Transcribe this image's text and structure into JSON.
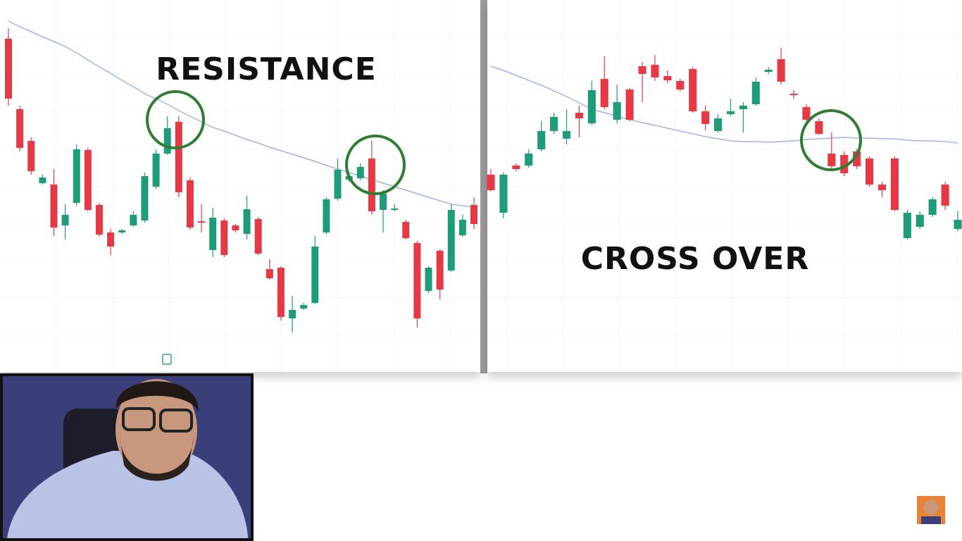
{
  "chart_data": [
    {
      "type": "candlestick",
      "title": "RESISTANCE",
      "up_color": "#1e9b78",
      "down_color": "#e63946",
      "ylim": [
        0,
        530
      ],
      "open": [
        475,
        375,
        330,
        270,
        268,
        210,
        242,
        317,
        239,
        200,
        200,
        210,
        217,
        265,
        312,
        357,
        274,
        216,
        175,
        217,
        210,
        198,
        219,
        148,
        150,
        78,
        92,
        100,
        200,
        248,
        275,
        277,
        305,
        232,
        232,
        215,
        185,
        117,
        174,
        146,
        196,
        239
      ],
      "high": [
        490,
        380,
        335,
        282,
        290,
        240,
        325,
        320,
        242,
        205,
        205,
        230,
        285,
        318,
        365,
        365,
        278,
        240,
        235,
        220,
        212,
        252,
        222,
        162,
        152,
        110,
        100,
        195,
        250,
        305,
        285,
        298,
        330,
        260,
        240,
        218,
        188,
        152,
        176,
        240,
        225,
        250
      ],
      "low": [
        380,
        315,
        282,
        268,
        195,
        190,
        238,
        230,
        194,
        168,
        198,
        208,
        214,
        262,
        310,
        250,
        204,
        200,
        165,
        165,
        200,
        190,
        168,
        133,
        75,
        58,
        90,
        98,
        198,
        245,
        272,
        274,
        225,
        200,
        230,
        190,
        65,
        114,
        105,
        144,
        194,
        205
      ],
      "close": [
        390,
        320,
        287,
        278,
        207,
        225,
        318,
        232,
        197,
        180,
        203,
        225,
        280,
        312,
        348,
        257,
        207,
        214,
        221,
        168,
        203,
        233,
        170,
        135,
        80,
        90,
        97,
        180,
        247,
        289,
        280,
        293,
        230,
        255,
        234,
        192,
        78,
        150,
        119,
        232,
        218,
        212
      ],
      "moving_average": {
        "color": "#9fb3e8",
        "values": [
          500,
          492,
          485,
          478,
          471,
          464,
          455,
          445,
          435,
          426,
          416,
          407,
          397,
          390,
          382,
          373,
          365,
          357,
          349,
          344,
          338,
          332,
          327,
          321,
          316,
          311,
          306,
          301,
          295,
          290,
          285,
          280,
          275,
          270,
          265,
          260,
          255,
          250,
          245,
          240,
          238,
          236
        ]
      }
    },
    {
      "type": "candlestick",
      "title": "CROSS OVER",
      "up_color": "#1e9b78",
      "down_color": "#e63946",
      "ylim": [
        0,
        530
      ],
      "open": [
        282,
        228,
        295,
        295,
        318,
        344,
        333,
        370,
        355,
        418,
        360,
        403,
        436,
        438,
        422,
        415,
        432,
        372,
        344,
        368,
        375,
        382,
        428,
        446,
        397,
        378,
        358,
        312,
        310,
        315,
        305,
        268,
        305,
        192,
        208,
        225,
        268,
        205
      ],
      "high": [
        290,
        285,
        298,
        318,
        358,
        370,
        375,
        380,
        415,
        450,
        410,
        405,
        442,
        452,
        430,
        418,
        435,
        380,
        368,
        390,
        385,
        420,
        435,
        462,
        402,
        382,
        362,
        342,
        315,
        318,
        308,
        272,
        308,
        232,
        230,
        250,
        272,
        230
      ],
      "low": [
        258,
        220,
        287,
        292,
        315,
        340,
        325,
        335,
        352,
        375,
        355,
        358,
        385,
        415,
        412,
        400,
        370,
        345,
        342,
        365,
        342,
        380,
        425,
        410,
        390,
        358,
        338,
        290,
        280,
        290,
        265,
        250,
        230,
        190,
        205,
        222,
        232,
        202
      ],
      "close": [
        260,
        282,
        290,
        312,
        344,
        364,
        344,
        362,
        402,
        378,
        385,
        360,
        425,
        420,
        416,
        403,
        372,
        354,
        362,
        372,
        380,
        414,
        431,
        414,
        395,
        360,
        340,
        294,
        284,
        294,
        268,
        260,
        232,
        228,
        225,
        247,
        238,
        218
      ],
      "moving_average": {
        "color": "#9fb3e8",
        "values": [
          436,
          430,
          423,
          416,
          409,
          401,
          393,
          384,
          375,
          370,
          365,
          360,
          356,
          352,
          348,
          344,
          340,
          336,
          333,
          330,
          329,
          329,
          328,
          329,
          330,
          332,
          333,
          334,
          335,
          334,
          334,
          333,
          333,
          331,
          330,
          330,
          329,
          327
        ]
      }
    }
  ]
}
